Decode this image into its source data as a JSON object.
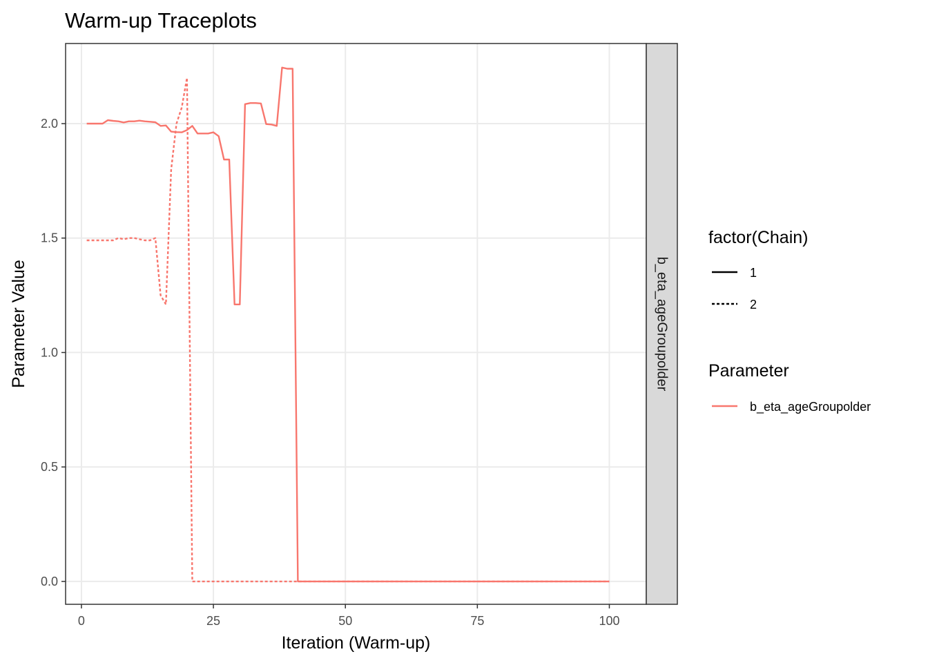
{
  "chart_data": {
    "type": "line",
    "title": "Warm-up Traceplots",
    "xlabel": "Iteration (Warm-up)",
    "ylabel": "Parameter Value",
    "xlim": [
      -3,
      107
    ],
    "ylim": [
      -0.1,
      2.35
    ],
    "x_ticks": [
      0,
      25,
      50,
      75,
      100
    ],
    "x_tick_labels": [
      "0",
      "25",
      "50",
      "75",
      "100"
    ],
    "y_ticks": [
      0,
      0.5,
      1,
      1.5,
      2
    ],
    "y_tick_labels": [
      "0.0",
      "0.5",
      "1.0",
      "1.5",
      "2.0"
    ],
    "grid": true,
    "facet_label": "b_eta_ageGroupolder",
    "legend_position": "right",
    "legends": [
      {
        "title": "factor(Chain)",
        "entries": [
          {
            "label": "1",
            "linetype": "solid"
          },
          {
            "label": "2",
            "linetype": "dashed"
          }
        ]
      },
      {
        "title": "Parameter",
        "entries": [
          {
            "label": "b_eta_ageGroupolder",
            "color": "#F8766D"
          }
        ]
      }
    ],
    "series": [
      {
        "chain": "1",
        "parameter": "b_eta_ageGroupolder",
        "color": "#F8766D",
        "linetype": "solid",
        "x": [
          1,
          2,
          3,
          4,
          5,
          6,
          7,
          8,
          9,
          10,
          11,
          12,
          13,
          14,
          15,
          16,
          17,
          18,
          19,
          20,
          21,
          22,
          23,
          24,
          25,
          26,
          27,
          28,
          29,
          30,
          31,
          32,
          33,
          34,
          35,
          36,
          37,
          38,
          39,
          40,
          41,
          100
        ],
        "y": [
          2.0,
          2.0,
          2.0,
          2.0,
          2.015,
          2.012,
          2.01,
          2.005,
          2.01,
          2.01,
          2.013,
          2.01,
          2.008,
          2.006,
          1.99,
          1.992,
          1.965,
          1.963,
          1.962,
          1.972,
          1.99,
          1.957,
          1.957,
          1.957,
          1.962,
          1.945,
          1.843,
          1.843,
          1.21,
          1.21,
          2.085,
          2.09,
          2.09,
          2.088,
          1.998,
          1.996,
          1.99,
          2.245,
          2.24,
          2.24,
          0.0,
          0.0
        ]
      },
      {
        "chain": "2",
        "parameter": "b_eta_ageGroupolder",
        "color": "#F8766D",
        "linetype": "dashed",
        "x": [
          1,
          2,
          3,
          4,
          5,
          6,
          7,
          8,
          9,
          10,
          11,
          12,
          13,
          14,
          15,
          16,
          17,
          18,
          19,
          20,
          21,
          100
        ],
        "y": [
          1.49,
          1.49,
          1.49,
          1.49,
          1.49,
          1.49,
          1.5,
          1.495,
          1.5,
          1.5,
          1.495,
          1.49,
          1.49,
          1.5,
          1.25,
          1.21,
          1.8,
          2.0,
          2.07,
          2.2,
          0.0,
          0.0
        ]
      }
    ]
  },
  "colors": {
    "panel_border": "#333333",
    "grid": "#ebebeb",
    "strip_fill": "#d9d9d9",
    "series": "#F8766D"
  }
}
